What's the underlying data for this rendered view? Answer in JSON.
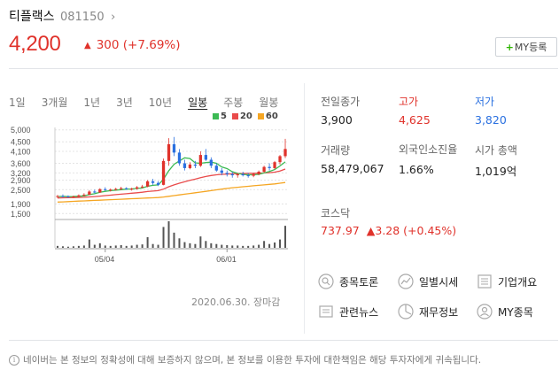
{
  "header": {
    "stock_name": "티플랙스",
    "stock_code": "081150",
    "chevron": "›",
    "price": "4,200",
    "change_arrow": "▲",
    "change_amount": "300",
    "change_percent": "(+7.69%)",
    "my_button_plus": "+",
    "my_button_label": "MY등록"
  },
  "tabs": {
    "items": [
      "1일",
      "3개월",
      "1년",
      "3년",
      "10년",
      "일봉",
      "주봉",
      "월봉"
    ],
    "active": "일봉"
  },
  "legend": [
    {
      "label": "5",
      "color": "#3cba54"
    },
    {
      "label": "20",
      "color": "#e94b4b"
    },
    {
      "label": "60",
      "color": "#f5a623"
    }
  ],
  "chart_data": {
    "type": "candlestick",
    "y_ticks": [
      "5,000",
      "4,500",
      "4,100",
      "3,600",
      "3,200",
      "2,900",
      "2,500",
      "1,900",
      "1,500"
    ],
    "x_ticks": [
      "05/04",
      "06/01"
    ],
    "date_caption": "2020.06.30. 장마감",
    "ylim": [
      1400,
      5100
    ],
    "candles": [
      [
        2200,
        2280,
        2150,
        2230
      ],
      [
        2230,
        2300,
        2180,
        2220
      ],
      [
        2220,
        2260,
        2170,
        2200
      ],
      [
        2200,
        2250,
        2150,
        2210
      ],
      [
        2210,
        2300,
        2190,
        2260
      ],
      [
        2260,
        2350,
        2230,
        2290
      ],
      [
        2290,
        2480,
        2270,
        2420
      ],
      [
        2420,
        2500,
        2350,
        2380
      ],
      [
        2380,
        2560,
        2360,
        2520
      ],
      [
        2520,
        2600,
        2450,
        2480
      ],
      [
        2480,
        2550,
        2420,
        2500
      ],
      [
        2500,
        2580,
        2460,
        2530
      ],
      [
        2530,
        2620,
        2480,
        2560
      ],
      [
        2560,
        2600,
        2500,
        2520
      ],
      [
        2520,
        2580,
        2460,
        2540
      ],
      [
        2540,
        2650,
        2500,
        2600
      ],
      [
        2600,
        2700,
        2550,
        2630
      ],
      [
        2630,
        2900,
        2600,
        2850
      ],
      [
        2850,
        2950,
        2700,
        2780
      ],
      [
        2780,
        2850,
        2650,
        2700
      ],
      [
        2700,
        3800,
        2680,
        3700
      ],
      [
        3700,
        4650,
        3500,
        4400
      ],
      [
        4400,
        4700,
        3900,
        4050
      ],
      [
        4050,
        4200,
        3500,
        3600
      ],
      [
        3600,
        3750,
        3300,
        3400
      ],
      [
        3400,
        3650,
        3350,
        3550
      ],
      [
        3550,
        3700,
        3400,
        3500
      ],
      [
        3500,
        4100,
        3450,
        3950
      ],
      [
        3950,
        4200,
        3700,
        3750
      ],
      [
        3750,
        3850,
        3400,
        3500
      ],
      [
        3500,
        3600,
        3250,
        3300
      ],
      [
        3300,
        3400,
        3100,
        3200
      ],
      [
        3200,
        3300,
        3050,
        3150
      ],
      [
        3150,
        3250,
        3000,
        3100
      ],
      [
        3100,
        3200,
        3000,
        3150
      ],
      [
        3150,
        3250,
        3050,
        3100
      ],
      [
        3100,
        3200,
        3000,
        3080
      ],
      [
        3080,
        3200,
        3020,
        3150
      ],
      [
        3150,
        3300,
        3100,
        3250
      ],
      [
        3250,
        3500,
        3200,
        3450
      ],
      [
        3450,
        3600,
        3300,
        3400
      ],
      [
        3400,
        3700,
        3350,
        3650
      ],
      [
        3650,
        3950,
        3550,
        3900
      ],
      [
        3900,
        4625,
        3820,
        4200
      ]
    ],
    "ma5": [
      2210,
      2220,
      2210,
      2215,
      2225,
      2240,
      2290,
      2330,
      2390,
      2430,
      2460,
      2480,
      2500,
      2520,
      2530,
      2550,
      2570,
      2640,
      2680,
      2700,
      2930,
      3290,
      3560,
      3700,
      3830,
      3800,
      3620,
      3600,
      3630,
      3650,
      3600,
      3450,
      3380,
      3250,
      3180,
      3140,
      3120,
      3120,
      3140,
      3200,
      3260,
      3340,
      3490,
      3660
    ],
    "ma20": [
      2150,
      2160,
      2165,
      2170,
      2175,
      2180,
      2195,
      2210,
      2230,
      2250,
      2270,
      2290,
      2310,
      2330,
      2350,
      2370,
      2390,
      2420,
      2440,
      2460,
      2520,
      2620,
      2700,
      2770,
      2830,
      2890,
      2940,
      3000,
      3050,
      3090,
      3120,
      3140,
      3150,
      3160,
      3170,
      3175,
      3180,
      3185,
      3190,
      3200,
      3210,
      3230,
      3280,
      3360
    ],
    "ma60": [
      1980,
      1990,
      2000,
      2010,
      2020,
      2030,
      2040,
      2050,
      2060,
      2070,
      2080,
      2090,
      2100,
      2110,
      2120,
      2130,
      2140,
      2150,
      2160,
      2170,
      2190,
      2220,
      2250,
      2280,
      2310,
      2340,
      2370,
      2400,
      2430,
      2460,
      2490,
      2520,
      2550,
      2580,
      2600,
      2620,
      2640,
      2660,
      2680,
      2700,
      2720,
      2740,
      2770,
      2800
    ],
    "volume": [
      5,
      4,
      3,
      4,
      5,
      6,
      22,
      8,
      12,
      6,
      5,
      6,
      7,
      5,
      6,
      8,
      9,
      28,
      10,
      8,
      55,
      70,
      40,
      25,
      15,
      12,
      10,
      30,
      18,
      12,
      10,
      8,
      7,
      6,
      6,
      5,
      5,
      6,
      8,
      18,
      10,
      14,
      22,
      58
    ]
  },
  "stats": [
    {
      "label": "전일종가",
      "value": "3,900",
      "color": "default"
    },
    {
      "label": "고가",
      "value": "4,625",
      "color": "red"
    },
    {
      "label": "저가",
      "value": "3,820",
      "color": "blue"
    },
    {
      "label": "거래량",
      "value": "58,479,067",
      "color": "default"
    },
    {
      "label": "외국인소진율",
      "value": "1.66%",
      "color": "default"
    },
    {
      "label": "시가 총액",
      "value": "1,019억",
      "color": "default"
    }
  ],
  "kosdaq": {
    "label": "코스닥",
    "value": "737.97",
    "arrow": "▲",
    "change": "3.28 (+0.45%)"
  },
  "links": [
    {
      "label": "종목토론",
      "icon": "discussion-icon"
    },
    {
      "label": "일별시세",
      "icon": "daily-price-icon"
    },
    {
      "label": "기업개요",
      "icon": "company-overview-icon"
    },
    {
      "label": "관련뉴스",
      "icon": "news-icon"
    },
    {
      "label": "재무정보",
      "icon": "finance-icon"
    },
    {
      "label": "MY종목",
      "icon": "my-stock-icon"
    }
  ],
  "notice": {
    "icon": "i",
    "text": "네이버는 본 정보의 정확성에 대해 보증하지 않으며, 본 정보를 이용한 투자에 대한책임은 해당 투자자에게 귀속됩니다."
  }
}
